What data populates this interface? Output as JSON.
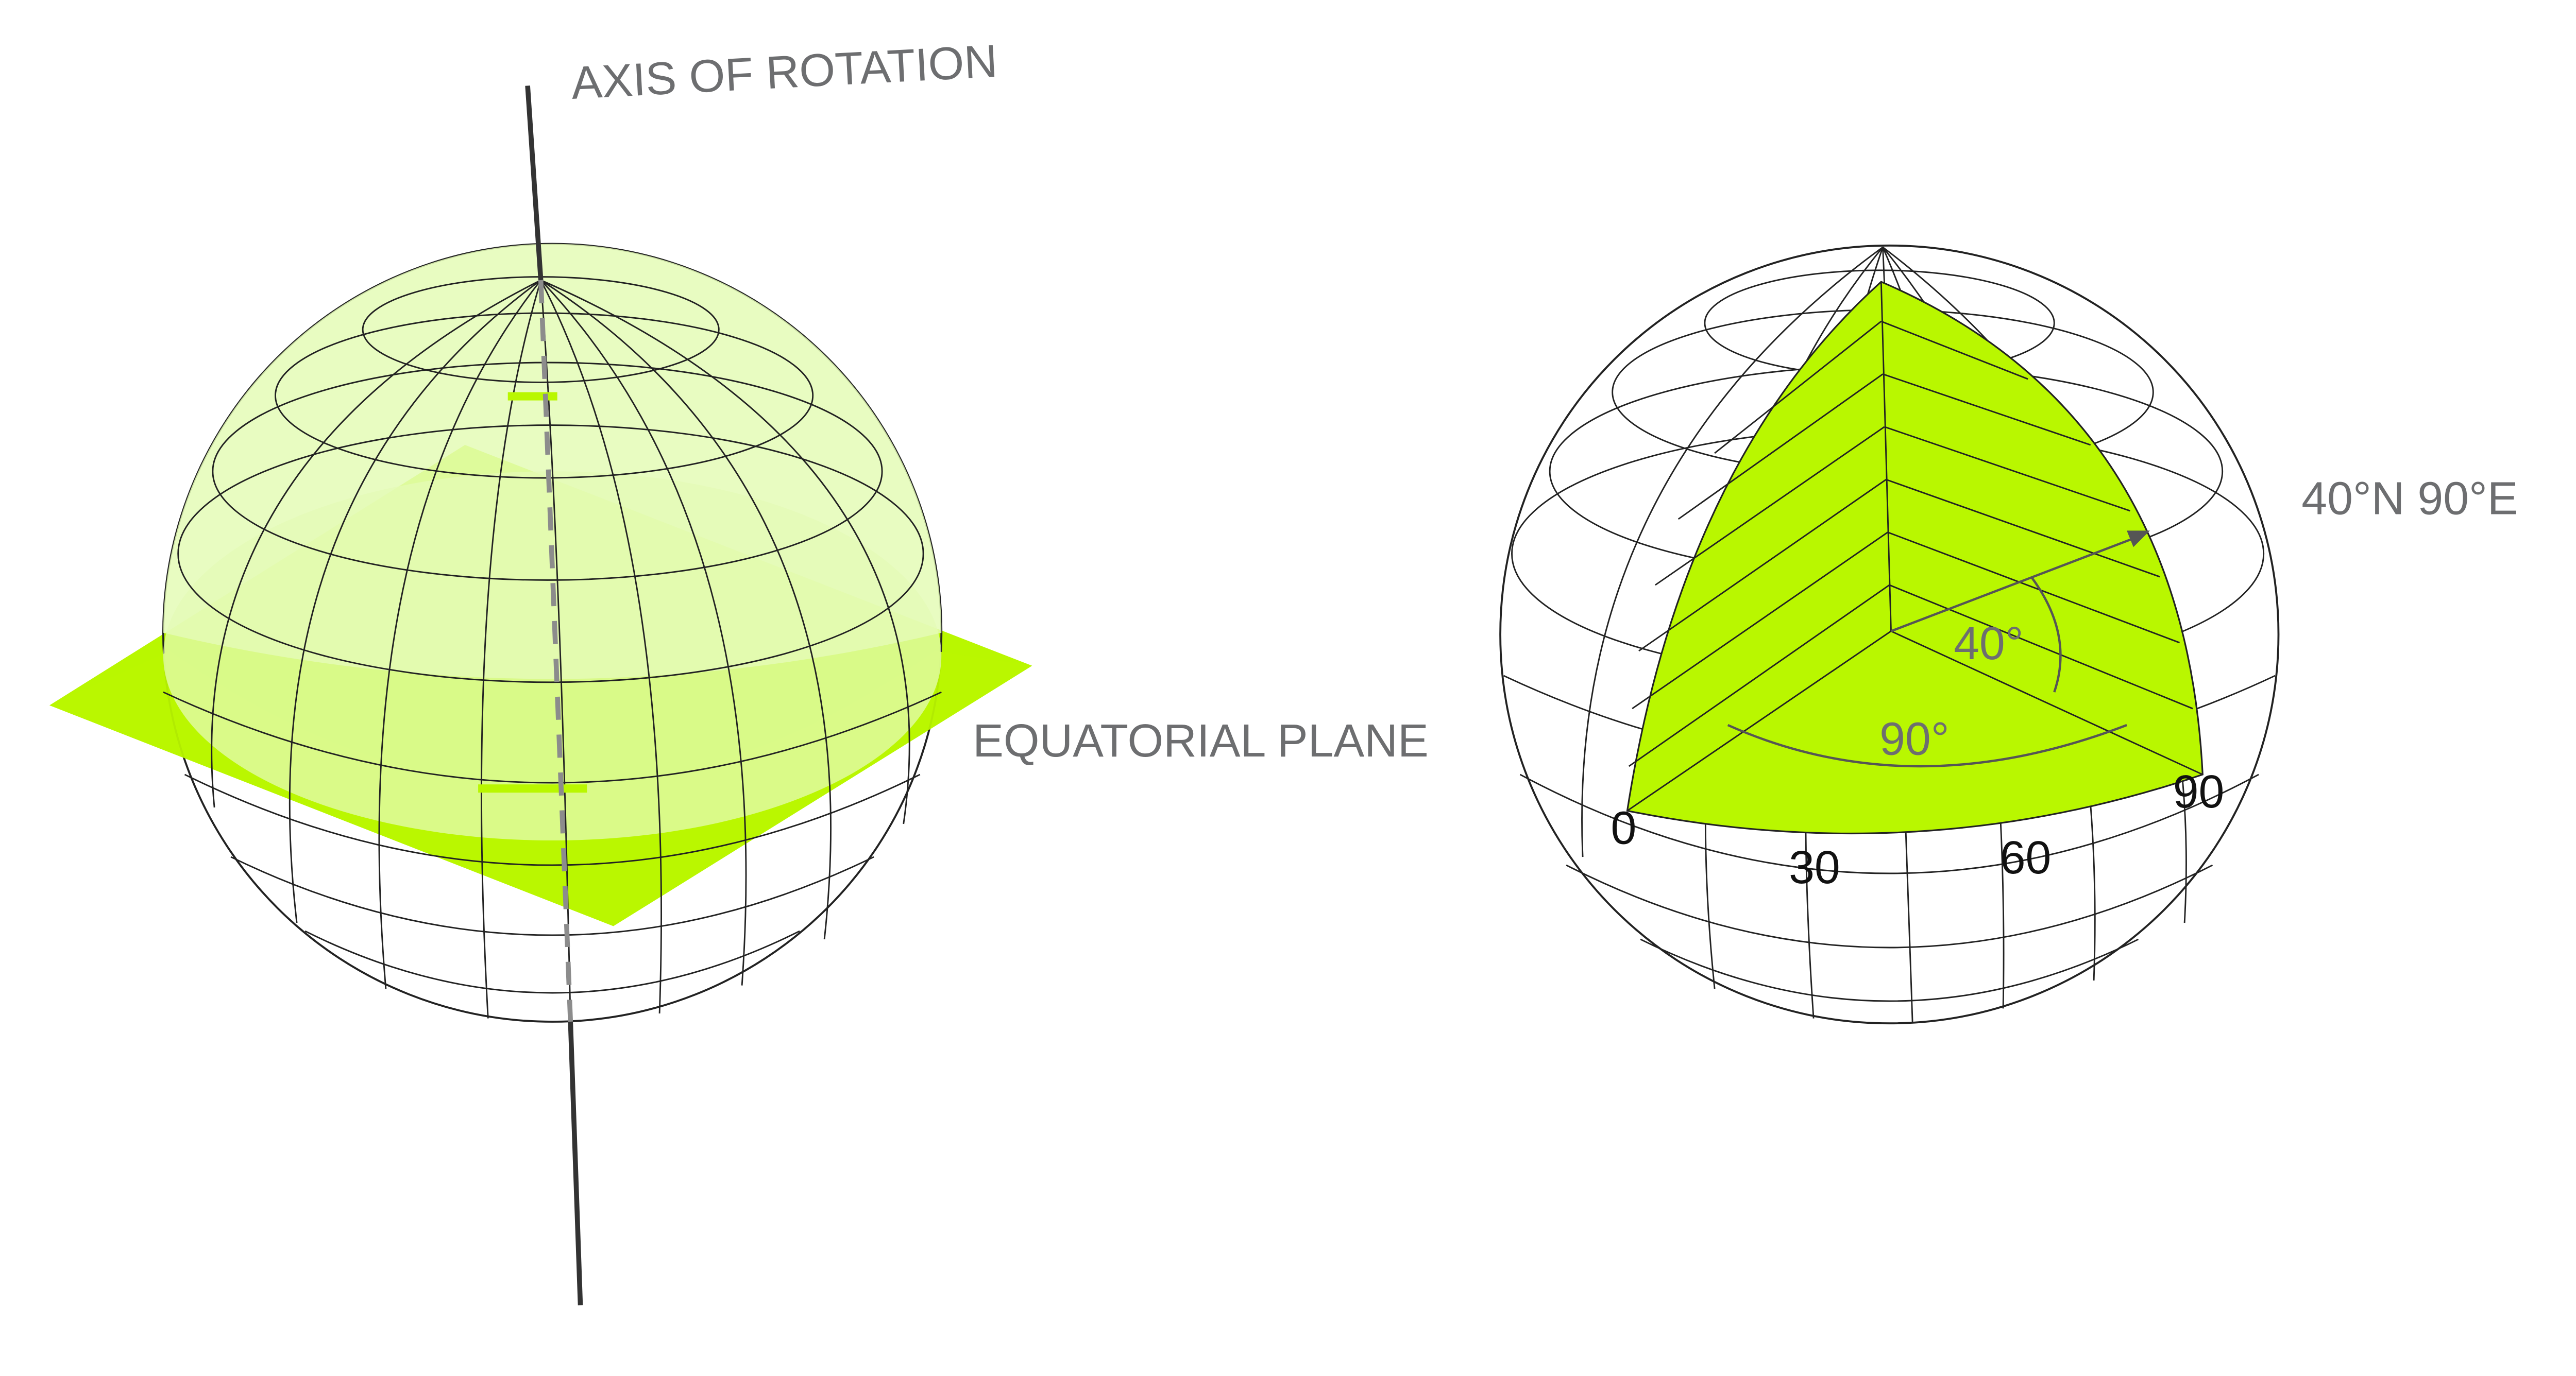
{
  "colors": {
    "accent": "#b9f700",
    "accent_light": "#e4fbb6",
    "grid_line": "#222222",
    "label": "#6d6e70",
    "number": "#111111"
  },
  "labels": {
    "axis_of_rotation": "AXIS OF ROTATION",
    "equatorial_plane": "EQUATORIAL PLANE",
    "coordinate": "40°N 90°E",
    "latitude_angle": "40°",
    "longitude_angle": "90°"
  },
  "longitude_ticks": [
    "0",
    "30",
    "60",
    "90"
  ]
}
